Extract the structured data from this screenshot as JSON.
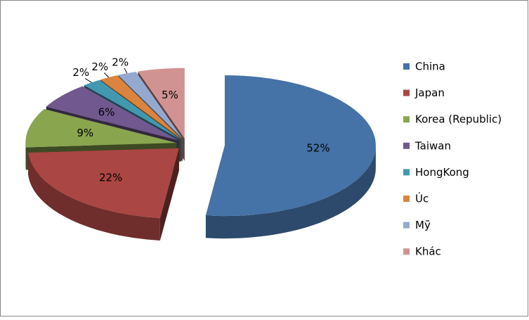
{
  "chart_data": {
    "type": "pie",
    "categories": [
      "China",
      "Japan",
      "Korea (Republic)",
      "Taiwan",
      "HongKong",
      "Úc",
      "Mỹ",
      "Khác"
    ],
    "values": [
      52,
      22,
      9,
      6,
      2,
      2,
      2,
      5
    ],
    "value_labels": [
      "52%",
      "22%",
      "9%",
      "6%",
      "2%",
      "2%",
      "2%",
      "5%"
    ],
    "colors": [
      "#4572a7",
      "#aa4643",
      "#89a54e",
      "#71588f",
      "#4198af",
      "#db843d",
      "#93a9cf",
      "#d19392"
    ],
    "legend": "right"
  }
}
